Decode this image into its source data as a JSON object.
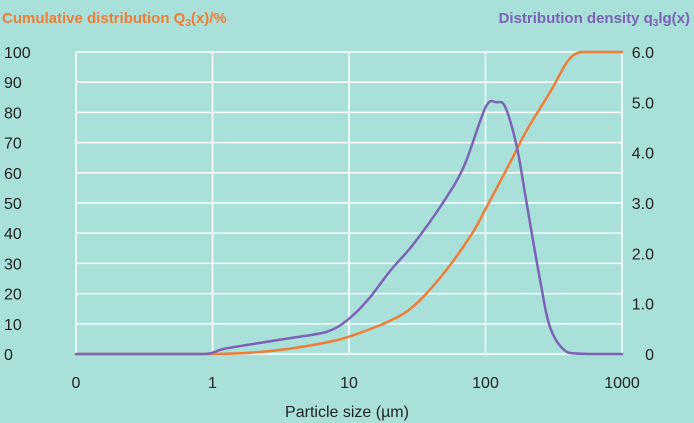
{
  "chart_data": {
    "type": "line",
    "left_axis_title": "Cumulative distribution Q",
    "left_axis_title_sub": "3",
    "left_axis_title_tail": "(x)/%",
    "right_axis_title": "Distribution density q",
    "right_axis_title_sub": "3",
    "right_axis_title_tail": "lg(x)",
    "xlabel": "Particle size (µm)",
    "x_scale": "log",
    "x_ticks": [
      "0",
      "1",
      "10",
      "100",
      "1000"
    ],
    "y_left_ticks": [
      "100",
      "90",
      "80",
      "70",
      "60",
      "50",
      "40",
      "30",
      "20",
      "10",
      "0"
    ],
    "y_right_ticks": [
      "6.0",
      "5.0",
      "4.0",
      "3.0",
      "2.0",
      "1.0",
      "0"
    ],
    "ylim_left": [
      0,
      100
    ],
    "ylim_right": [
      0,
      6
    ],
    "xlim_decades": [
      -1,
      3
    ],
    "grid": true,
    "colors": {
      "background": "#a9e0da",
      "grid": "#ffffff",
      "cumulative": "#ef7d35",
      "density": "#7b63b5",
      "text": "#222222"
    },
    "series": [
      {
        "key": "cumulative",
        "axis": "left",
        "x": [
          0.1,
          0.3,
          1,
          2,
          4,
          8,
          12,
          20,
          30,
          50,
          80,
          100,
          150,
          200,
          300,
          400,
          500,
          700,
          1000
        ],
        "y": [
          0,
          0,
          0,
          0.5,
          2,
          4.5,
          7,
          11,
          16,
          27,
          40,
          48,
          63,
          74,
          87,
          97,
          100,
          100,
          100
        ]
      },
      {
        "key": "density",
        "axis": "right",
        "x": [
          0.1,
          0.5,
          0.9,
          1.2,
          2,
          4,
          7,
          10,
          14,
          20,
          30,
          50,
          70,
          100,
          120,
          140,
          170,
          200,
          250,
          300,
          400,
          600,
          800,
          1000
        ],
        "y": [
          0,
          0,
          0,
          0.1,
          0.2,
          0.33,
          0.45,
          0.7,
          1.1,
          1.65,
          2.2,
          3.05,
          3.75,
          4.9,
          5.0,
          4.9,
          4.1,
          3.0,
          1.5,
          0.5,
          0.03,
          0,
          0,
          0
        ]
      }
    ]
  }
}
